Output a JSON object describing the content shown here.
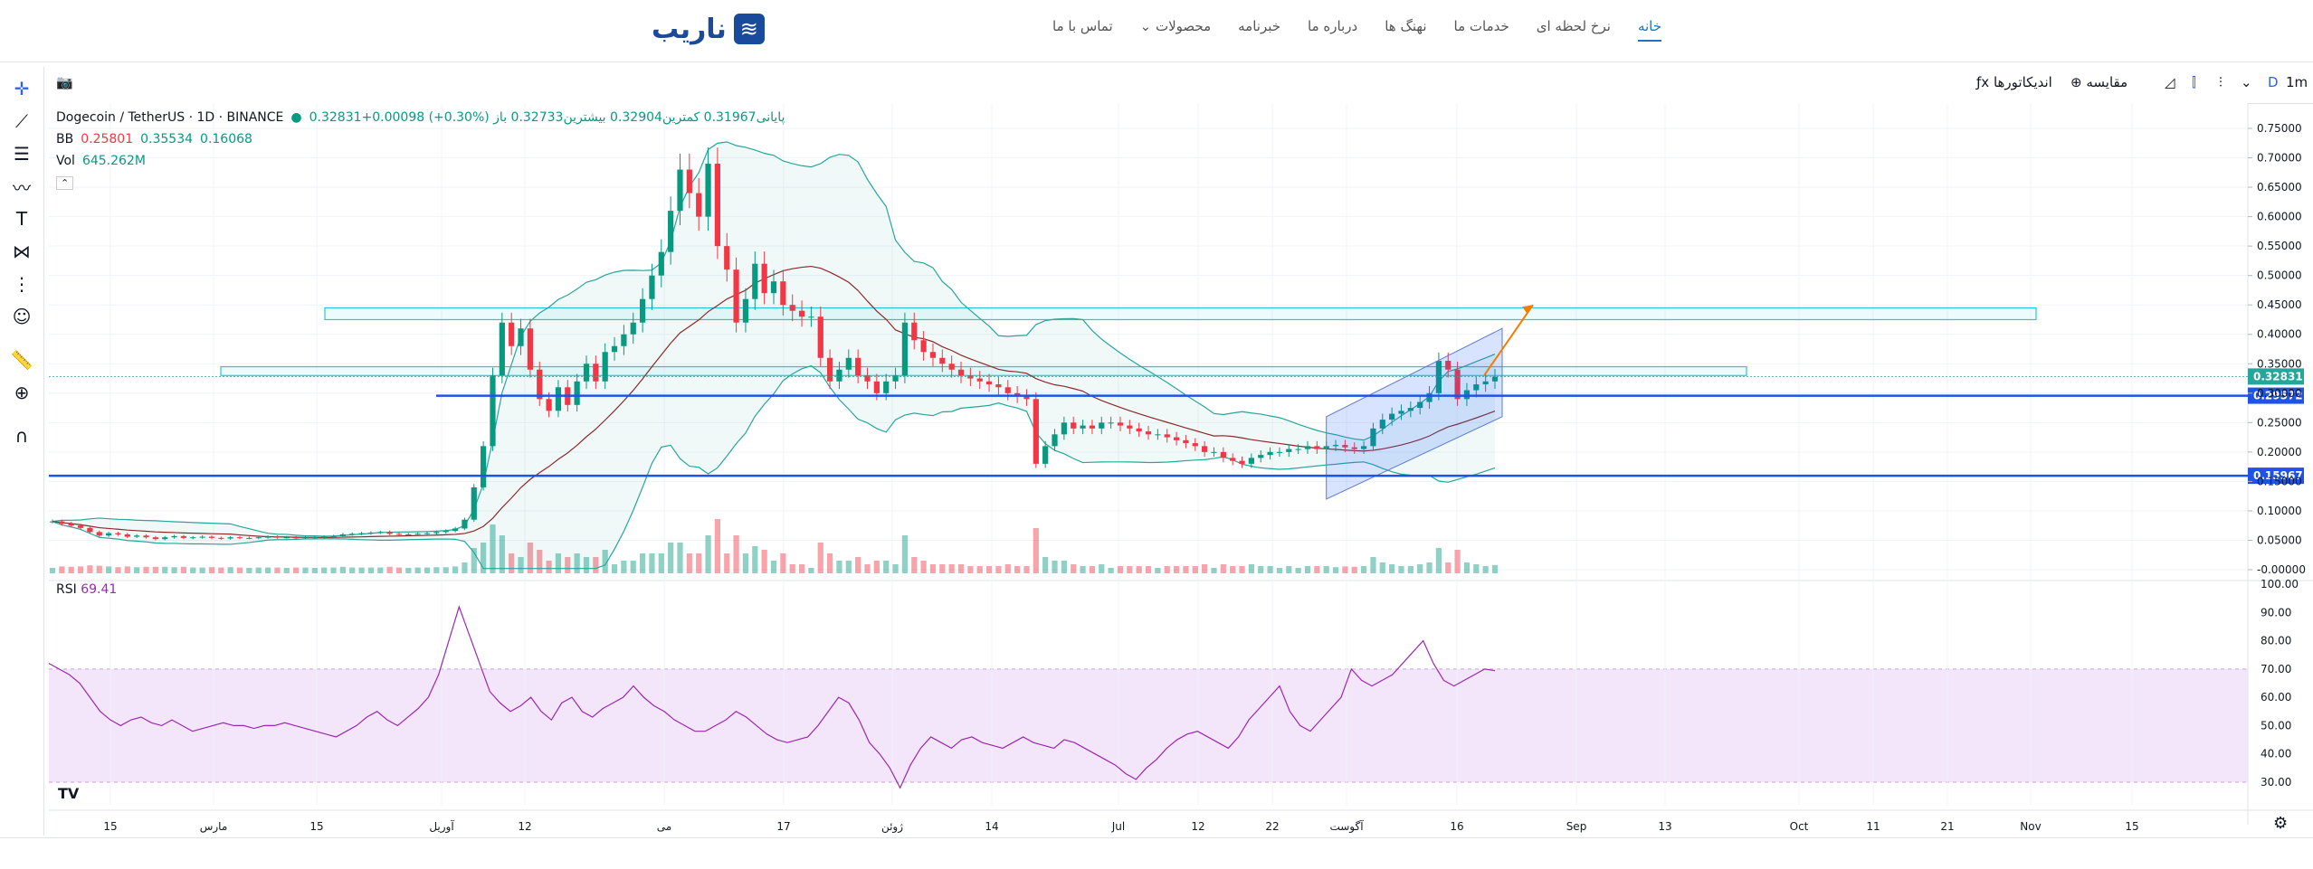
{
  "nav": {
    "logo": "ناریب",
    "items": [
      "خانه",
      "نرخ لحظه ای",
      "خدمات ما",
      "نهنگ ها",
      "درباره ما",
      "خبرنامه",
      "محصولات",
      "تماس با ما"
    ]
  },
  "toolbar": {
    "interval": "1m",
    "interval2": "D",
    "compare": "مقایسه",
    "indicators": "اندیکاتورها"
  },
  "legend": {
    "symbol": "Dogecoin / TetherUS · 1D · BINANCE",
    "ohlc": "0.32831+0.00098 (+0.30%) پایانی0.31967 کمترین0.32904 بیشترین0.32733 باز",
    "bb_label": "BB",
    "bb1": "0.25801",
    "bb2": "0.35534",
    "bb3": "0.16068",
    "vol_label": "Vol",
    "vol": "645.262M",
    "rsi_label": "RSI",
    "rsi": "69.41"
  },
  "colors": {
    "up": "#089981",
    "down": "#f23645",
    "bb": "#26a69a",
    "ma": "#8b2a2a",
    "blue": "#1e53e5",
    "cyan": "#26c6da",
    "rsi": "#9c27b0",
    "arrow": "#f57c00"
  },
  "chart_data": [
    {
      "type": "candlestick",
      "title": "Dogecoin / TetherUS · 1D · BINANCE",
      "ylim": [
        0.0,
        0.75
      ],
      "y_ticks": [
        "0.75000",
        "0.70000",
        "0.65000",
        "0.60000",
        "0.55000",
        "0.50000",
        "0.45000",
        "0.40000",
        "0.35000",
        "0.30000",
        "0.25000",
        "0.20000",
        "0.15000",
        "0.10000",
        "0.05000",
        "-0.00000"
      ],
      "x_ticks": [
        "15",
        "مارس",
        "15",
        "آوریل",
        "12",
        "می",
        "17",
        "ژوئن",
        "14",
        "Jul",
        "12",
        "22",
        "آگوست",
        "16",
        "Sep",
        "13",
        "Oct",
        "11",
        "21",
        "Nov",
        "15"
      ],
      "close_series": [
        0.082,
        0.078,
        0.075,
        0.071,
        0.064,
        0.058,
        0.062,
        0.06,
        0.056,
        0.058,
        0.055,
        0.052,
        0.055,
        0.057,
        0.054,
        0.055,
        0.056,
        0.054,
        0.053,
        0.055,
        0.054,
        0.054,
        0.055,
        0.056,
        0.055,
        0.055,
        0.054,
        0.055,
        0.055,
        0.056,
        0.057,
        0.06,
        0.061,
        0.062,
        0.063,
        0.064,
        0.061,
        0.06,
        0.06,
        0.061,
        0.062,
        0.064,
        0.066,
        0.07,
        0.085,
        0.14,
        0.21,
        0.33,
        0.42,
        0.38,
        0.41,
        0.34,
        0.29,
        0.27,
        0.31,
        0.28,
        0.32,
        0.35,
        0.32,
        0.37,
        0.38,
        0.4,
        0.42,
        0.46,
        0.5,
        0.54,
        0.61,
        0.68,
        0.64,
        0.6,
        0.69,
        0.55,
        0.51,
        0.42,
        0.46,
        0.52,
        0.47,
        0.49,
        0.45,
        0.44,
        0.43,
        0.43,
        0.36,
        0.32,
        0.34,
        0.36,
        0.33,
        0.32,
        0.3,
        0.32,
        0.33,
        0.42,
        0.39,
        0.37,
        0.36,
        0.35,
        0.34,
        0.33,
        0.325,
        0.32,
        0.315,
        0.31,
        0.3,
        0.295,
        0.29,
        0.18,
        0.21,
        0.23,
        0.25,
        0.24,
        0.245,
        0.24,
        0.25,
        0.25,
        0.245,
        0.24,
        0.235,
        0.23,
        0.23,
        0.225,
        0.22,
        0.215,
        0.21,
        0.2,
        0.2,
        0.19,
        0.185,
        0.18,
        0.19,
        0.195,
        0.2,
        0.2,
        0.205,
        0.205,
        0.21,
        0.205,
        0.21,
        0.212,
        0.208,
        0.205,
        0.21,
        0.24,
        0.255,
        0.265,
        0.27,
        0.275,
        0.285,
        0.3,
        0.355,
        0.34,
        0.29,
        0.305,
        0.315,
        0.32,
        0.328
      ],
      "horizontal_levels": [
        {
          "label": "0.32831",
          "value": 0.32831,
          "color": "#26a69a"
        },
        {
          "label": "0.29572",
          "value": 0.29572,
          "color": "#1e53e5"
        },
        {
          "label": "0.15967",
          "value": 0.15967,
          "color": "#1e53e5"
        }
      ],
      "zones": [
        [
          0.425,
          0.445
        ],
        [
          0.33,
          0.345
        ]
      ]
    },
    {
      "type": "line",
      "title": "RSI",
      "ylim": [
        22,
        100
      ],
      "y_ticks": [
        "100.00",
        "90.00",
        "80.00",
        "70.00",
        "60.00",
        "50.00",
        "40.00",
        "30.00"
      ],
      "band": [
        30,
        70
      ],
      "values": [
        72,
        70,
        68,
        65,
        60,
        55,
        52,
        50,
        52,
        53,
        51,
        50,
        52,
        50,
        48,
        49,
        50,
        51,
        50,
        50,
        49,
        50,
        50,
        51,
        50,
        49,
        48,
        47,
        46,
        48,
        50,
        53,
        55,
        52,
        50,
        53,
        56,
        60,
        68,
        80,
        92,
        82,
        72,
        62,
        58,
        55,
        57,
        60,
        55,
        52,
        58,
        60,
        55,
        53,
        56,
        58,
        60,
        64,
        60,
        57,
        55,
        52,
        50,
        48,
        48,
        50,
        52,
        55,
        53,
        50,
        47,
        45,
        44,
        45,
        46,
        50,
        55,
        60,
        58,
        52,
        44,
        40,
        35,
        28,
        36,
        42,
        46,
        44,
        42,
        45,
        46,
        44,
        43,
        42,
        44,
        46,
        44,
        43,
        42,
        45,
        44,
        42,
        40,
        38,
        36,
        33,
        31,
        35,
        38,
        42,
        45,
        47,
        48,
        46,
        44,
        42,
        46,
        52,
        56,
        60,
        64,
        55,
        50,
        48,
        52,
        56,
        60,
        70,
        66,
        64,
        66,
        68,
        72,
        76,
        80,
        72,
        66,
        64,
        66,
        68,
        70,
        69.41
      ]
    }
  ]
}
